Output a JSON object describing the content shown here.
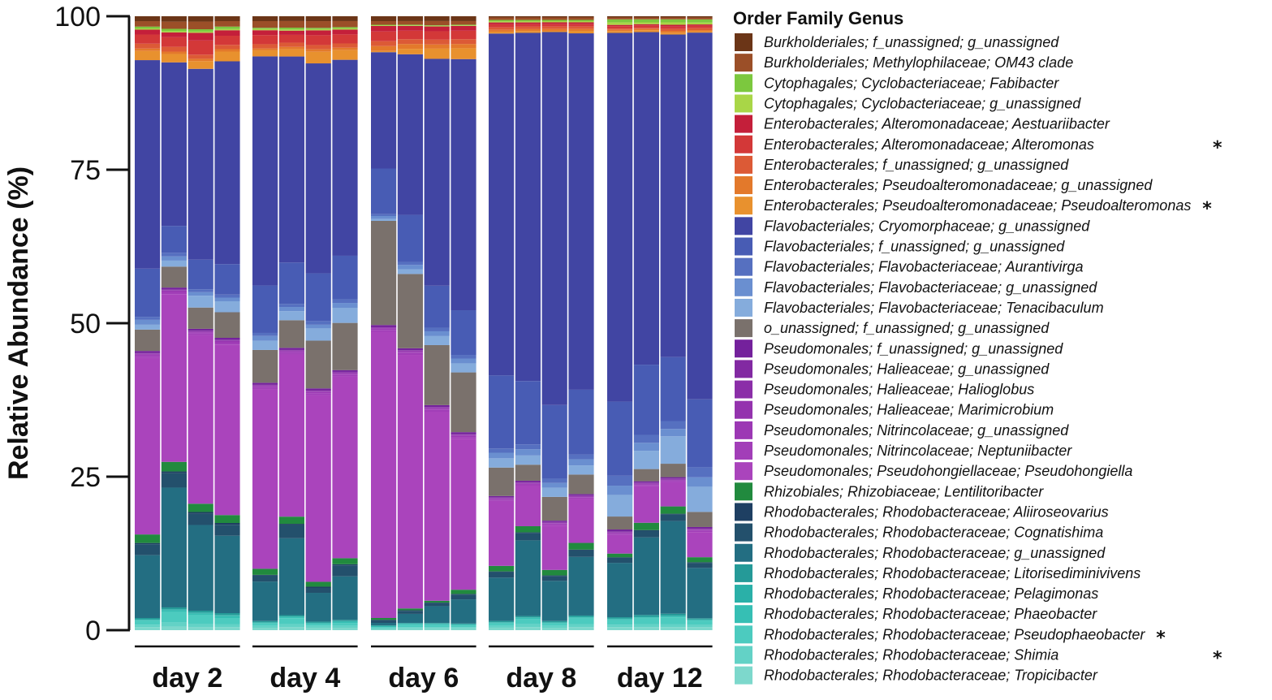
{
  "chart_data": {
    "type": "bar",
    "stacked": true,
    "title": "",
    "xlabel": "",
    "ylabel": "Relative Abundance (%)",
    "ylim": [
      0,
      100
    ],
    "yticks": [
      "0",
      "25",
      "50",
      "75",
      "100"
    ],
    "groups": [
      "day 2",
      "day 4",
      "day 6",
      "day 8",
      "day 12"
    ],
    "replicates_per_group": 4,
    "legend_title": "Order Family Genus",
    "legend_position": "right",
    "series": [
      {
        "name": "Rhodobacterales; Rhodobacteraceae; Tropicibacter",
        "color": "#7dd8cc",
        "values": [
          0.5,
          0.6,
          0.5,
          0.5,
          0.4,
          0.5,
          0.4,
          0.4,
          0.2,
          0.3,
          0.3,
          0.3,
          0.4,
          0.5,
          0.4,
          0.5,
          0.5,
          0.5,
          0.5,
          0.5
        ]
      },
      {
        "name": "Rhodobacterales; Rhodobacteraceae; Shimia",
        "starred": true,
        "color": "#63d2c6",
        "values": [
          0.4,
          0.7,
          0.6,
          0.5,
          0.3,
          0.5,
          0.3,
          0.3,
          0.1,
          0.2,
          0.2,
          0.2,
          0.3,
          0.5,
          0.3,
          0.5,
          0.4,
          0.5,
          0.5,
          0.4
        ]
      },
      {
        "name": "Rhodobacterales; Rhodobacteraceae; Pseudophaeobacter",
        "starred": true,
        "color": "#4ccbbf",
        "values": [
          0.6,
          1.7,
          1.4,
          1.0,
          0.4,
          1.0,
          0.3,
          0.5,
          0.2,
          0.4,
          0.4,
          0.3,
          0.4,
          0.8,
          0.4,
          0.9,
          0.7,
          0.9,
          1.1,
          0.6
        ]
      },
      {
        "name": "Rhodobacterales; Rhodobacteraceae; Phaeobacter",
        "color": "#36bfb4",
        "values": [
          0.2,
          0.3,
          0.3,
          0.3,
          0.1,
          0.2,
          0.1,
          0.2,
          0.1,
          0.1,
          0.1,
          0.1,
          0.1,
          0.2,
          0.1,
          0.2,
          0.2,
          0.2,
          0.2,
          0.1
        ]
      },
      {
        "name": "Rhodobacterales; Rhodobacteraceae; Pelagimonas",
        "color": "#2ab0a8",
        "values": [
          0.1,
          0.2,
          0.2,
          0.2,
          0.1,
          0.1,
          0.1,
          0.1,
          0.1,
          0.1,
          0.1,
          0.1,
          0.1,
          0.1,
          0.1,
          0.1,
          0.1,
          0.1,
          0.1,
          0.1
        ]
      },
      {
        "name": "Rhodobacterales; Rhodobacteraceae; Litorisediminivivens",
        "color": "#259a98",
        "values": [
          0.2,
          0.3,
          0.3,
          0.3,
          0.2,
          0.2,
          0.2,
          0.2,
          0.1,
          0.1,
          0.1,
          0.1,
          0.2,
          0.2,
          0.2,
          0.2,
          0.2,
          0.3,
          0.3,
          0.2
        ]
      },
      {
        "name": "Rhodobacterales; Rhodobacteraceae; g_unassigned",
        "color": "#236e82",
        "values": [
          10.3,
          20.0,
          14.5,
          12.7,
          6.5,
          12.8,
          4.7,
          7.2,
          0.4,
          1.5,
          2.8,
          4.0,
          7.0,
          12.3,
          6.6,
          9.6,
          8.8,
          12.7,
          15.2,
          8.0
        ]
      },
      {
        "name": "Rhodobacterales; Rhodobacteraceae; Cognatishima",
        "color": "#23506c",
        "values": [
          1.8,
          2.4,
          1.9,
          1.8,
          1.0,
          2.2,
          0.8,
          1.8,
          0.4,
          0.5,
          0.5,
          0.8,
          0.9,
          1.2,
          0.8,
          1.1,
          0.8,
          1.1,
          1.1,
          0.8
        ]
      },
      {
        "name": "Rhodobacterales; Rhodobacteraceae; Aliiroseovarius",
        "color": "#1e3f62",
        "values": [
          0.2,
          0.3,
          0.3,
          0.3,
          0.1,
          0.2,
          0.2,
          0.2,
          0.1,
          0.1,
          0.1,
          0.1,
          0.1,
          0.1,
          0.1,
          0.1,
          0.1,
          0.1,
          0.1,
          0.1
        ]
      },
      {
        "name": "Rhizobiales; Rhizobiaceae; Lentilitoribacter",
        "color": "#218a3e",
        "values": [
          1.4,
          1.6,
          1.4,
          1.3,
          1.0,
          1.2,
          0.8,
          1.0,
          0.3,
          0.3,
          0.3,
          0.7,
          0.9,
          1.0,
          0.9,
          1.1,
          0.6,
          1.2,
          1.2,
          0.8
        ]
      },
      {
        "name": "Pseudomonales; Pseudohongiellaceae; Pseudohongiella",
        "color": "#aa44bc",
        "values": [
          29.0,
          28.0,
          28.5,
          28.0,
          29.5,
          27.0,
          30.5,
          30.0,
          47.0,
          42.0,
          31.5,
          25.0,
          10.5,
          6.6,
          7.3,
          7.2,
          3.0,
          6.0,
          4.0,
          4.0
        ]
      },
      {
        "name": "Pseudomonales; Nitrincolaceae; Neptuniibacter",
        "color": "#a23eb8",
        "values": [
          0.3,
          0.3,
          0.3,
          0.3,
          0.3,
          0.3,
          0.3,
          0.3,
          0.3,
          0.3,
          0.3,
          0.3,
          0.2,
          0.2,
          0.2,
          0.2,
          0.2,
          0.2,
          0.2,
          0.2
        ]
      },
      {
        "name": "Pseudomonales; Nitrincolaceae; g_unassigned",
        "color": "#9c38b4",
        "values": [
          0.2,
          0.2,
          0.2,
          0.2,
          0.2,
          0.2,
          0.2,
          0.2,
          0.2,
          0.2,
          0.2,
          0.2,
          0.1,
          0.1,
          0.1,
          0.1,
          0.1,
          0.1,
          0.1,
          0.1
        ]
      },
      {
        "name": "Pseudomonales; Halieaceae; Marimicrobium",
        "color": "#9433ae",
        "values": [
          0.1,
          0.1,
          0.1,
          0.1,
          0.1,
          0.1,
          0.1,
          0.1,
          0.1,
          0.1,
          0.1,
          0.1,
          0.1,
          0.1,
          0.1,
          0.1,
          0.1,
          0.1,
          0.1,
          0.1
        ]
      },
      {
        "name": "Pseudomonales; Halieaceae; Halioglobus",
        "color": "#8b2ea8",
        "values": [
          0.1,
          0.1,
          0.1,
          0.1,
          0.1,
          0.1,
          0.1,
          0.1,
          0.1,
          0.1,
          0.1,
          0.1,
          0.1,
          0.1,
          0.1,
          0.1,
          0.1,
          0.1,
          0.1,
          0.1
        ]
      },
      {
        "name": "Pseudomonales; Halieaceae; g_unassigned",
        "color": "#8229a2",
        "values": [
          0.1,
          0.1,
          0.1,
          0.1,
          0.1,
          0.1,
          0.1,
          0.1,
          0.1,
          0.1,
          0.1,
          0.1,
          0.1,
          0.1,
          0.1,
          0.1,
          0.1,
          0.1,
          0.1,
          0.1
        ]
      },
      {
        "name": "Pseudomonales; f_unassigned; g_unassigned",
        "color": "#74219c",
        "values": [
          0.3,
          0.3,
          0.3,
          0.3,
          0.3,
          0.3,
          0.3,
          0.3,
          0.3,
          0.3,
          0.3,
          0.3,
          0.2,
          0.2,
          0.2,
          0.2,
          0.3,
          0.2,
          0.2,
          0.2
        ]
      },
      {
        "name": "o_unassigned; f_unassigned; g_unassigned",
        "color": "#7a716c",
        "values": [
          3.5,
          3.5,
          3.6,
          4.2,
          5.4,
          4.6,
          7.8,
          7.8,
          17.1,
          12.3,
          10.0,
          9.9,
          4.6,
          2.6,
          3.9,
          3.2,
          2.1,
          2.0,
          2.2,
          2.4
        ]
      },
      {
        "name": "Flavobacteriales; Flavobacteriaceae; Tenacibaculum",
        "color": "#85acdc",
        "values": [
          0.8,
          1.0,
          2.0,
          1.8,
          1.5,
          1.5,
          2.0,
          2.5,
          0.3,
          0.8,
          1.5,
          1.5,
          1.5,
          1.5,
          1.5,
          1.5,
          3.5,
          3.0,
          4.5,
          4.0
        ]
      },
      {
        "name": "Flavobacteriales; Flavobacteriaceae; g_unassigned",
        "color": "#6a8fd0",
        "values": [
          0.8,
          0.7,
          0.6,
          0.6,
          0.8,
          0.7,
          0.6,
          0.8,
          0.5,
          0.7,
          0.8,
          0.8,
          0.9,
          1.0,
          0.8,
          1.0,
          1.5,
          1.3,
          1.2,
          1.5
        ]
      },
      {
        "name": "Flavobacteriales; Flavobacteriaceae; Aurantivirga",
        "color": "#5670c0",
        "values": [
          0.5,
          0.6,
          0.5,
          0.5,
          0.5,
          0.5,
          0.6,
          0.6,
          0.3,
          0.5,
          0.6,
          0.6,
          0.7,
          0.8,
          0.7,
          0.8,
          1.6,
          1.3,
          1.3,
          1.6
        ]
      },
      {
        "name": "Flavobacteriales; f_unassigned; g_unassigned",
        "color": "#485cb4",
        "values": [
          7.9,
          4.5,
          5.0,
          5.0,
          7.8,
          6.9,
          7.8,
          7.2,
          7.5,
          7.8,
          7.0,
          7.4,
          11.8,
          10.3,
          12.1,
          10.6,
          12.0,
          11.5,
          10.5,
          10.8
        ]
      },
      {
        "name": "Flavobacteriales; Cryomorphaceae; g_unassigned",
        "color": "#4145a3",
        "values": [
          34.2,
          27.3,
          32.3,
          33.3,
          37.7,
          34.3,
          34.3,
          32.4,
          19.1,
          26.6,
          37.8,
          41.6,
          55.3,
          56.6,
          61.3,
          58.4,
          59.7,
          54.5,
          52.9,
          58.3
        ]
      },
      {
        "name": "Enterobacterales; Pseudoalteromonadaceae; Pseudoalteromonas",
        "starred": true,
        "color": "#e8912e",
        "values": [
          1.5,
          1.4,
          1.3,
          1.6,
          1.0,
          1.2,
          1.9,
          1.6,
          0.2,
          0.9,
          1.7,
          1.8,
          0.3,
          0.3,
          0.2,
          0.4,
          0.3,
          0.3,
          0.3,
          0.2
        ]
      },
      {
        "name": "Enterobacterales; Pseudoalteromonadaceae; g_unassigned",
        "color": "#e3792b",
        "values": [
          0.4,
          0.4,
          0.4,
          0.4,
          0.3,
          0.4,
          0.4,
          0.4,
          0.8,
          0.8,
          0.7,
          0.7,
          0.3,
          0.3,
          0.3,
          0.3,
          0.2,
          0.2,
          0.3,
          0.2
        ]
      },
      {
        "name": "Enterobacterales; f_unassigned; g_unassigned",
        "color": "#dc5a36",
        "values": [
          0.8,
          0.8,
          0.7,
          0.7,
          0.7,
          0.7,
          0.7,
          0.7,
          0.8,
          0.8,
          0.8,
          0.8,
          0.4,
          0.4,
          0.4,
          0.4,
          0.2,
          0.2,
          0.3,
          0.3
        ]
      },
      {
        "name": "Enterobacterales; Alteromonadaceae; Alteromonas",
        "starred": true,
        "color": "#d33838",
        "values": [
          1.5,
          1.6,
          2.4,
          1.5,
          1.5,
          1.3,
          1.6,
          1.5,
          1.6,
          1.4,
          1.4,
          1.4,
          0.5,
          0.4,
          0.4,
          0.4,
          0.4,
          0.4,
          0.4,
          0.4
        ]
      },
      {
        "name": "Enterobacterales; Alteromonadaceae; Aestuariibacter",
        "color": "#c41f3a",
        "values": [
          0.8,
          0.8,
          1.3,
          0.9,
          0.8,
          0.7,
          0.8,
          0.8,
          0.9,
          0.8,
          0.8,
          0.8,
          0.3,
          0.3,
          0.3,
          0.3,
          0.2,
          0.2,
          0.3,
          0.2
        ]
      },
      {
        "name": "Cytophagales; Cyclobacteriaceae; g_unassigned",
        "color": "#a9d647",
        "values": [
          0.2,
          0.2,
          0.2,
          0.2,
          0.2,
          0.2,
          0.2,
          0.2,
          0.1,
          0.1,
          0.1,
          0.1,
          0.2,
          0.2,
          0.2,
          0.2,
          0.4,
          0.3,
          0.4,
          0.3
        ]
      },
      {
        "name": "Cytophagales; Cyclobacteriaceae; Fabibacter",
        "color": "#7cc83e",
        "values": [
          0.3,
          0.4,
          0.4,
          0.4,
          0.2,
          0.3,
          0.2,
          0.2,
          0.1,
          0.1,
          0.1,
          0.1,
          0.2,
          0.2,
          0.2,
          0.2,
          0.5,
          0.5,
          0.5,
          0.5
        ]
      },
      {
        "name": "Burkholderiales; Methylophilaceae; OM43 clade",
        "color": "#9b4f28",
        "values": [
          0.9,
          1.2,
          1.3,
          0.9,
          1.1,
          1.1,
          1.1,
          1.0,
          0.6,
          0.6,
          0.7,
          0.6,
          0.4,
          0.4,
          0.4,
          0.4,
          0.3,
          0.3,
          0.3,
          0.3
        ]
      },
      {
        "name": "Burkholderiales; f_unassigned; g_unassigned",
        "color": "#6b3517",
        "values": [
          0.8,
          0.9,
          0.9,
          0.8,
          0.8,
          0.8,
          0.8,
          0.8,
          0.8,
          0.8,
          0.8,
          0.8,
          0.2,
          0.2,
          0.2,
          0.2,
          0.2,
          0.2,
          0.2,
          0.2
        ]
      }
    ]
  }
}
